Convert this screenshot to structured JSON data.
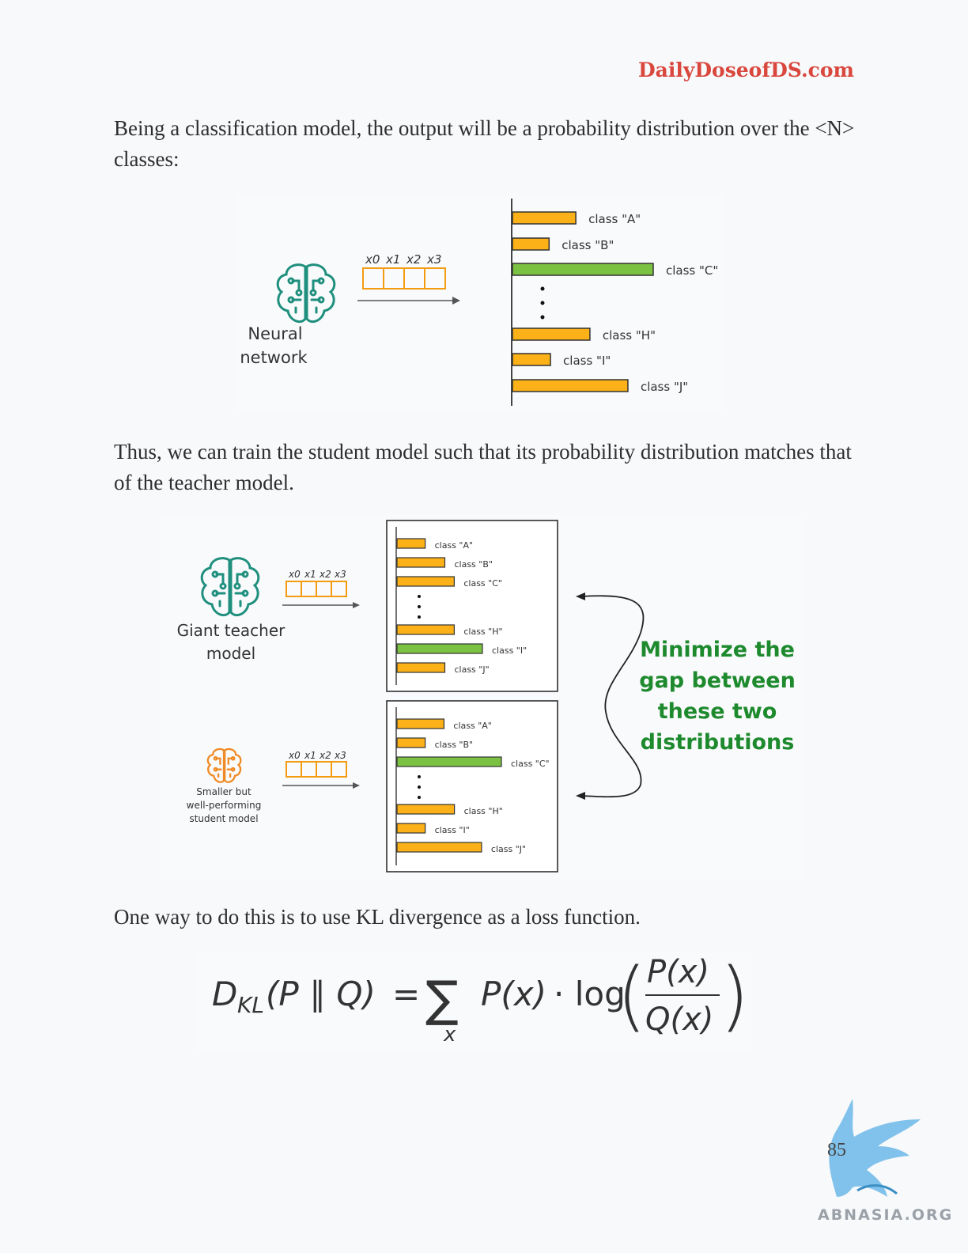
{
  "header": {
    "site": "DailyDoseofDS.com"
  },
  "paragraphs": {
    "p1": "Being a classification model, the output will be a probability distribution over the <N> classes:",
    "p2": "Thus, we can train the student model such that its probability distribution matches that of the teacher model.",
    "p3": "One way to do this is to use KL divergence as a loss function."
  },
  "figure1": {
    "model_label_line1": "Neural",
    "model_label_line2": "network",
    "inputs": [
      "x0",
      "x1",
      "x2",
      "x3"
    ],
    "bars": [
      {
        "label": "class \"A\"",
        "value": 0.45,
        "highlight": false
      },
      {
        "label": "class \"B\"",
        "value": 0.26,
        "highlight": false
      },
      {
        "label": "class \"C\"",
        "value": 1.0,
        "highlight": true
      },
      {
        "label": "class \"H\"",
        "value": 0.55,
        "highlight": false
      },
      {
        "label": "class \"I\"",
        "value": 0.27,
        "highlight": false
      },
      {
        "label": "class \"J\"",
        "value": 0.82,
        "highlight": false
      }
    ]
  },
  "figure2": {
    "teacher_label_line1": "Giant teacher",
    "teacher_label_line2": "model",
    "student_label_line1": "Smaller but",
    "student_label_line2": "well-performing",
    "student_label_line3": "student model",
    "inputs": [
      "x0",
      "x1",
      "x2",
      "x3"
    ],
    "teacher_bars": [
      {
        "label": "class \"A\"",
        "value": 0.33,
        "highlight": false
      },
      {
        "label": "class \"B\"",
        "value": 0.56,
        "highlight": false
      },
      {
        "label": "class \"C\"",
        "value": 0.67,
        "highlight": false
      },
      {
        "label": "class \"H\"",
        "value": 0.67,
        "highlight": false
      },
      {
        "label": "class \"I\"",
        "value": 1.0,
        "highlight": true
      },
      {
        "label": "class \"J\"",
        "value": 0.56,
        "highlight": false
      }
    ],
    "student_bars": [
      {
        "label": "class \"A\"",
        "value": 0.45,
        "highlight": false
      },
      {
        "label": "class \"B\"",
        "value": 0.27,
        "highlight": false
      },
      {
        "label": "class \"C\"",
        "value": 1.0,
        "highlight": true
      },
      {
        "label": "class \"H\"",
        "value": 0.55,
        "highlight": false
      },
      {
        "label": "class \"I\"",
        "value": 0.27,
        "highlight": false
      },
      {
        "label": "class \"J\"",
        "value": 0.81,
        "highlight": false
      }
    ],
    "note_lines": [
      "Minimize the",
      "gap between",
      "these two",
      "distributions"
    ]
  },
  "formula": {
    "lhs_D": "D",
    "lhs_sub": "KL",
    "lhs_args": "(P ∥ Q)",
    "equals": "=",
    "sigma": "∑",
    "sum_index": "x",
    "px": "P(x)",
    "dot_log": "· log",
    "numerator": "P(x)",
    "denominator": "Q(x)"
  },
  "footer": {
    "page_number": "85",
    "watermark": "ABNASIA.ORG"
  },
  "colors": {
    "bar": "#fbb117",
    "bar_highlight": "#7cc242",
    "teacher_icon": "#1f8f7e",
    "student_icon": "#f08a24",
    "note": "#1e8a2e",
    "link": "#d9473d"
  }
}
